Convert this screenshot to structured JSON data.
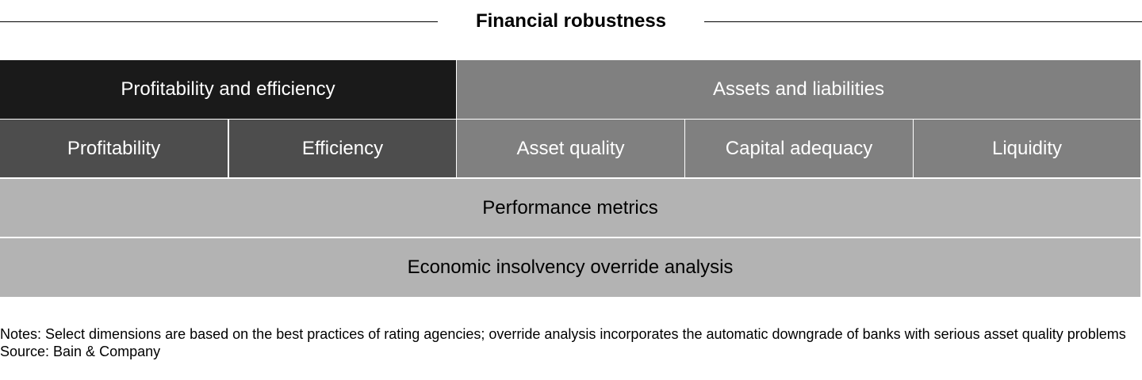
{
  "header": {
    "title": "Financial robustness"
  },
  "diagram": {
    "top_row": [
      {
        "label": "Profitability and efficiency",
        "shade": "#1a1a1a"
      },
      {
        "label": "Assets and liabilities",
        "shade": "#808080"
      }
    ],
    "dimension_row": [
      {
        "label": "Profitability",
        "shade": "#4d4d4d"
      },
      {
        "label": "Efficiency",
        "shade": "#4d4d4d"
      },
      {
        "label": "Asset quality",
        "shade": "#808080"
      },
      {
        "label": "Capital adequacy",
        "shade": "#808080"
      },
      {
        "label": "Liquidity",
        "shade": "#808080"
      }
    ],
    "performance": {
      "label": "Performance metrics",
      "shade": "#b3b3b3"
    },
    "override": {
      "label": "Economic insolvency override analysis",
      "shade": "#b3b3b3"
    }
  },
  "footer": {
    "notes": "Notes: Select dimensions are based on the best practices of rating agencies; override analysis incorporates the automatic downgrade of banks with serious asset quality problems",
    "source": "Source: Bain & Company"
  }
}
